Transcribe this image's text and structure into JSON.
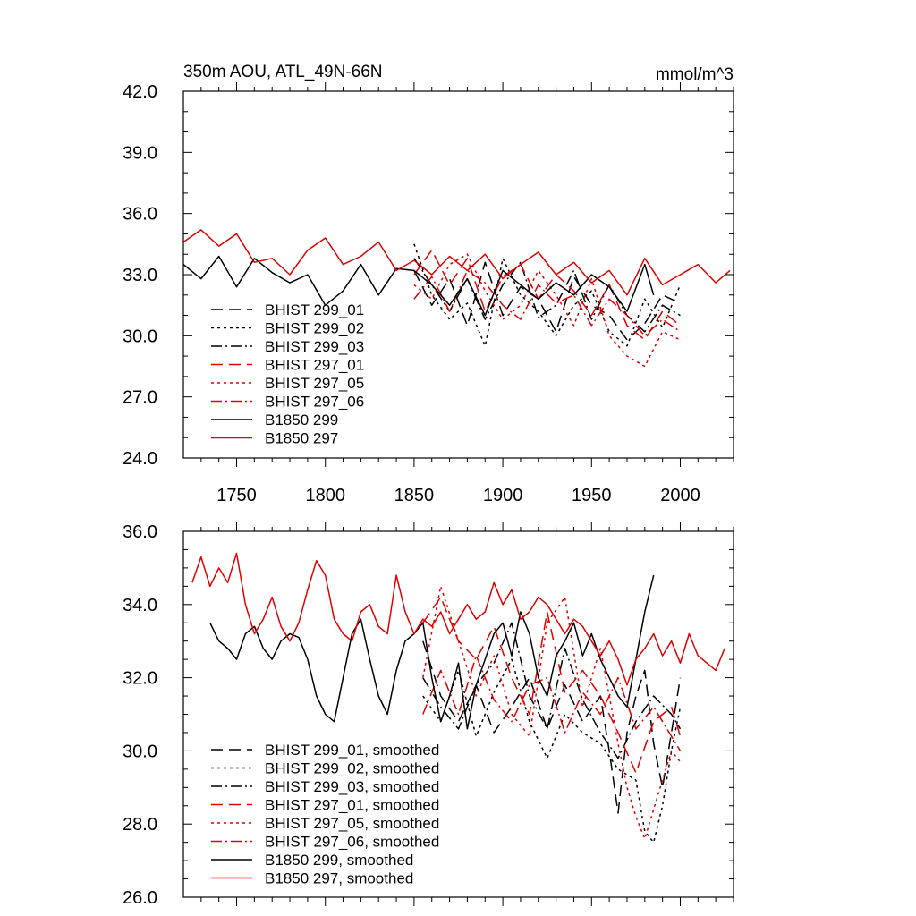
{
  "chart_data": [
    {
      "type": "line",
      "title_left": "350m AOU, ATL_49N-66N",
      "title_right": "mmol/m^3",
      "xlabel": "",
      "ylabel": "",
      "xlim": [
        1720,
        2030
      ],
      "ylim": [
        24.0,
        42.0
      ],
      "yticks": [
        "24.0",
        "27.0",
        "30.0",
        "33.0",
        "36.0",
        "39.0",
        "42.0"
      ],
      "yticks_values": [
        24,
        27,
        30,
        33,
        36,
        39,
        42
      ],
      "xticks": [
        "1750",
        "1800",
        "1850",
        "1900",
        "1950",
        "2000"
      ],
      "xticks_values": [
        1750,
        1800,
        1850,
        1900,
        1950,
        2000
      ],
      "legend": [
        "BHIST 299_01",
        "BHIST 299_02",
        "BHIST 299_03",
        "BHIST 297_01",
        "BHIST 297_05",
        "BHIST 297_06",
        "B1850 299",
        "B1850 297"
      ],
      "legend_location": "lower-left",
      "series": [
        {
          "name": "BHIST 299_01",
          "color": "#000000",
          "dash": "long",
          "x": [
            1850,
            1860,
            1870,
            1880,
            1890,
            1900,
            1910,
            1920,
            1930,
            1940,
            1950,
            1960,
            1970,
            1980,
            1990,
            2000
          ],
          "values": [
            33.2,
            31.5,
            32.8,
            30.5,
            33.6,
            31.0,
            32.4,
            31.8,
            30.2,
            32.9,
            31.5,
            31.0,
            29.8,
            30.6,
            32.0,
            31.6
          ]
        },
        {
          "name": "BHIST 299_02",
          "color": "#000000",
          "dash": "dot",
          "x": [
            1850,
            1860,
            1870,
            1880,
            1890,
            1900,
            1910,
            1920,
            1930,
            1940,
            1950,
            1960,
            1970,
            1980,
            1990,
            2000
          ],
          "values": [
            34.5,
            32.0,
            30.8,
            31.6,
            29.5,
            33.8,
            32.0,
            31.2,
            30.0,
            31.5,
            32.2,
            30.2,
            29.5,
            31.8,
            30.4,
            32.5
          ]
        },
        {
          "name": "BHIST 299_03",
          "color": "#000000",
          "dash": "dashdot",
          "x": [
            1850,
            1860,
            1870,
            1880,
            1890,
            1900,
            1910,
            1920,
            1930,
            1940,
            1950,
            1960,
            1970,
            1980,
            1990,
            2000
          ],
          "values": [
            33.8,
            32.5,
            31.2,
            32.8,
            30.8,
            32.5,
            33.6,
            30.9,
            31.5,
            33.2,
            30.8,
            32.5,
            31.0,
            30.2,
            31.5,
            31.0
          ]
        },
        {
          "name": "BHIST 297_01",
          "color": "#e00000",
          "dash": "long",
          "x": [
            1850,
            1860,
            1870,
            1880,
            1890,
            1900,
            1910,
            1920,
            1930,
            1940,
            1950,
            1960,
            1970,
            1980,
            1990,
            2000
          ],
          "values": [
            33.0,
            34.2,
            32.5,
            33.8,
            31.2,
            32.9,
            33.5,
            31.8,
            33.0,
            32.2,
            31.0,
            32.5,
            30.5,
            29.8,
            31.2,
            30.5
          ]
        },
        {
          "name": "BHIST 297_05",
          "color": "#e00000",
          "dash": "dot",
          "x": [
            1850,
            1860,
            1870,
            1880,
            1890,
            1900,
            1910,
            1920,
            1930,
            1940,
            1950,
            1960,
            1970,
            1980,
            1990,
            2000
          ],
          "values": [
            32.5,
            31.8,
            33.5,
            34.0,
            32.2,
            30.8,
            31.5,
            33.2,
            32.0,
            30.5,
            32.8,
            30.0,
            29.0,
            28.5,
            30.2,
            29.8
          ]
        },
        {
          "name": "BHIST 297_06",
          "color": "#e00000",
          "dash": "dashdot",
          "x": [
            1850,
            1860,
            1870,
            1880,
            1890,
            1900,
            1910,
            1920,
            1930,
            1940,
            1950,
            1960,
            1970,
            1980,
            1990,
            2000
          ],
          "values": [
            31.8,
            32.9,
            31.2,
            33.2,
            32.6,
            31.5,
            30.8,
            32.5,
            31.6,
            32.0,
            30.5,
            31.8,
            31.0,
            30.0,
            30.8,
            30.2
          ]
        },
        {
          "name": "B1850 299",
          "color": "#000000",
          "dash": "solid",
          "x": [
            1720,
            1730,
            1740,
            1750,
            1760,
            1770,
            1780,
            1790,
            1800,
            1810,
            1820,
            1830,
            1840,
            1850,
            1860,
            1870,
            1880,
            1890,
            1900,
            1910,
            1920,
            1930,
            1940,
            1950,
            1960,
            1970,
            1980,
            1985
          ],
          "values": [
            33.5,
            32.8,
            33.9,
            32.4,
            33.8,
            33.1,
            32.6,
            33.0,
            31.5,
            32.2,
            33.5,
            32.0,
            33.3,
            33.2,
            32.5,
            31.5,
            32.8,
            31.0,
            33.2,
            32.5,
            31.8,
            32.6,
            32.0,
            33.0,
            32.4,
            31.2,
            33.5,
            32.0
          ]
        },
        {
          "name": "B1850 297",
          "color": "#e00000",
          "dash": "solid",
          "x": [
            1720,
            1730,
            1740,
            1750,
            1760,
            1770,
            1780,
            1790,
            1800,
            1810,
            1820,
            1830,
            1840,
            1850,
            1860,
            1870,
            1880,
            1890,
            1900,
            1910,
            1920,
            1930,
            1940,
            1950,
            1960,
            1970,
            1980,
            1990,
            2000,
            2010,
            2020,
            2028
          ],
          "values": [
            34.6,
            35.2,
            34.4,
            35.0,
            33.6,
            33.8,
            33.0,
            34.2,
            34.8,
            33.5,
            33.9,
            34.6,
            33.2,
            33.7,
            33.0,
            33.9,
            33.2,
            34.0,
            32.8,
            33.5,
            34.1,
            33.0,
            33.6,
            32.6,
            33.2,
            32.0,
            33.8,
            32.5,
            33.0,
            33.5,
            32.6,
            33.2
          ]
        }
      ]
    },
    {
      "type": "line",
      "title_left": "",
      "title_right": "",
      "xlabel": "",
      "ylabel": "",
      "xlim": [
        1720,
        2030
      ],
      "ylim": [
        26.0,
        36.0
      ],
      "yticks": [
        "26.0",
        "28.0",
        "30.0",
        "32.0",
        "34.0",
        "36.0"
      ],
      "yticks_values": [
        26,
        28,
        30,
        32,
        34,
        36
      ],
      "xticks": [],
      "xticks_values": [
        1750,
        1800,
        1850,
        1900,
        1950,
        2000
      ],
      "legend": [
        "BHIST 299_01, smoothed",
        "BHIST 299_02, smoothed",
        "BHIST 299_03, smoothed",
        "BHIST 297_01, smoothed",
        "BHIST 297_05, smoothed",
        "BHIST 297_06, smoothed",
        "B1850 299, smoothed",
        "B1850 297, smoothed"
      ],
      "legend_location": "lower-left",
      "series": [
        {
          "name": "BHIST 299_01, smoothed",
          "color": "#000000",
          "dash": "long",
          "x": [
            1855,
            1865,
            1875,
            1885,
            1895,
            1905,
            1915,
            1925,
            1935,
            1945,
            1955,
            1960,
            1965,
            1970,
            1975,
            1980,
            1985,
            1990,
            1995,
            2000
          ],
          "values": [
            33.0,
            31.5,
            30.8,
            31.8,
            30.5,
            31.2,
            32.0,
            30.6,
            31.8,
            30.8,
            31.5,
            30.0,
            28.3,
            30.5,
            31.5,
            32.2,
            30.2,
            29.0,
            30.5,
            32.0
          ]
        },
        {
          "name": "BHIST 299_02, smoothed",
          "color": "#000000",
          "dash": "dot",
          "x": [
            1855,
            1865,
            1875,
            1885,
            1895,
            1905,
            1915,
            1925,
            1935,
            1945,
            1955,
            1965,
            1975,
            1980,
            1985,
            1990,
            1995,
            2000
          ],
          "values": [
            31.5,
            30.8,
            32.2,
            30.4,
            31.6,
            32.5,
            30.8,
            29.8,
            31.0,
            30.5,
            30.2,
            29.5,
            29.2,
            27.8,
            27.5,
            28.5,
            30.0,
            31.2
          ]
        },
        {
          "name": "BHIST 299_03, smoothed",
          "color": "#000000",
          "dash": "dashdot",
          "x": [
            1855,
            1865,
            1875,
            1885,
            1895,
            1905,
            1915,
            1925,
            1935,
            1945,
            1955,
            1965,
            1975,
            1985,
            1995,
            2000
          ],
          "values": [
            32.0,
            31.2,
            30.6,
            31.8,
            32.4,
            33.5,
            31.5,
            30.6,
            32.8,
            31.4,
            30.5,
            29.8,
            30.8,
            31.5,
            31.0,
            30.6
          ]
        },
        {
          "name": "BHIST 297_01, smoothed",
          "color": "#e00000",
          "dash": "long",
          "x": [
            1855,
            1865,
            1875,
            1885,
            1895,
            1905,
            1915,
            1925,
            1935,
            1945,
            1955,
            1965,
            1975,
            1985,
            1995,
            2000
          ],
          "values": [
            33.5,
            34.2,
            33.0,
            32.5,
            33.4,
            32.0,
            31.0,
            33.8,
            31.6,
            32.2,
            31.5,
            30.5,
            29.4,
            30.8,
            31.2,
            30.4
          ]
        },
        {
          "name": "BHIST 297_05, smoothed",
          "color": "#e00000",
          "dash": "dot",
          "x": [
            1855,
            1865,
            1875,
            1885,
            1895,
            1905,
            1915,
            1925,
            1935,
            1945,
            1955,
            1965,
            1970,
            1975,
            1980,
            1985,
            1990,
            1995,
            2000
          ],
          "values": [
            32.0,
            34.5,
            33.0,
            31.5,
            32.6,
            31.0,
            30.4,
            33.5,
            34.2,
            31.2,
            32.8,
            30.2,
            29.0,
            28.2,
            27.6,
            28.4,
            29.2,
            30.0,
            29.7
          ]
        },
        {
          "name": "BHIST 297_06, smoothed",
          "color": "#e00000",
          "dash": "dashdot",
          "x": [
            1855,
            1865,
            1875,
            1885,
            1895,
            1905,
            1915,
            1925,
            1935,
            1945,
            1955,
            1965,
            1975,
            1985,
            1995,
            2000
          ],
          "values": [
            31.0,
            32.2,
            31.0,
            32.6,
            31.4,
            30.8,
            31.8,
            32.0,
            30.5,
            31.6,
            31.0,
            32.0,
            30.6,
            31.2,
            30.4,
            30.0
          ]
        },
        {
          "name": "B1850 299, smoothed",
          "color": "#000000",
          "dash": "solid",
          "x": [
            1735,
            1740,
            1745,
            1750,
            1755,
            1760,
            1765,
            1770,
            1775,
            1780,
            1785,
            1790,
            1795,
            1800,
            1805,
            1810,
            1815,
            1820,
            1825,
            1830,
            1835,
            1840,
            1845,
            1850,
            1855,
            1860,
            1865,
            1870,
            1875,
            1880,
            1885,
            1890,
            1895,
            1900,
            1905,
            1910,
            1915,
            1920,
            1925,
            1930,
            1935,
            1940,
            1945,
            1950,
            1955,
            1960,
            1965,
            1970,
            1975,
            1980,
            1985
          ],
          "values": [
            33.5,
            33.0,
            32.8,
            32.5,
            33.2,
            33.4,
            32.8,
            32.5,
            33.0,
            33.2,
            33.1,
            32.5,
            31.5,
            31.0,
            30.8,
            32.0,
            33.2,
            33.6,
            32.5,
            31.5,
            31.0,
            32.2,
            33.0,
            33.2,
            33.5,
            32.0,
            30.8,
            31.5,
            32.4,
            30.6,
            31.8,
            32.5,
            33.2,
            33.5,
            32.6,
            33.8,
            33.2,
            32.0,
            31.5,
            32.6,
            33.0,
            33.5,
            32.6,
            33.2,
            32.5,
            32.0,
            31.5,
            31.2,
            32.5,
            33.8,
            34.8
          ]
        },
        {
          "name": "B1850 297, smoothed",
          "color": "#e00000",
          "dash": "solid",
          "x": [
            1725,
            1730,
            1735,
            1740,
            1745,
            1750,
            1755,
            1760,
            1765,
            1770,
            1775,
            1780,
            1785,
            1790,
            1795,
            1800,
            1805,
            1810,
            1815,
            1820,
            1825,
            1830,
            1835,
            1840,
            1845,
            1850,
            1855,
            1860,
            1865,
            1870,
            1875,
            1880,
            1885,
            1890,
            1895,
            1900,
            1905,
            1910,
            1915,
            1920,
            1925,
            1930,
            1935,
            1940,
            1945,
            1950,
            1955,
            1960,
            1965,
            1970,
            1975,
            1980,
            1985,
            1990,
            1995,
            2000,
            2005,
            2010,
            2015,
            2020,
            2025
          ],
          "values": [
            34.6,
            35.3,
            34.5,
            35.0,
            34.6,
            35.4,
            34.0,
            33.2,
            33.6,
            34.2,
            33.4,
            33.0,
            33.5,
            34.4,
            35.2,
            34.8,
            33.6,
            33.2,
            33.0,
            33.8,
            34.0,
            33.4,
            33.2,
            34.8,
            33.8,
            33.2,
            33.6,
            33.4,
            33.8,
            33.2,
            33.6,
            34.0,
            33.6,
            33.8,
            34.6,
            34.0,
            34.4,
            33.6,
            33.8,
            34.2,
            34.0,
            33.6,
            33.2,
            33.6,
            33.4,
            33.0,
            32.6,
            33.0,
            32.5,
            31.8,
            32.5,
            32.8,
            33.2,
            32.6,
            33.0,
            32.4,
            33.2,
            32.6,
            32.4,
            32.2,
            32.8
          ]
        }
      ]
    }
  ]
}
